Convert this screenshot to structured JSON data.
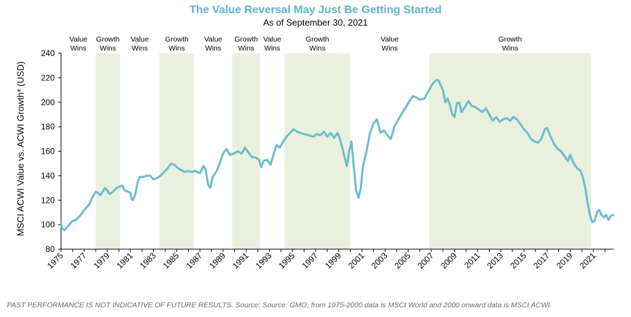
{
  "title": "The Value Reversal May Just Be Getting Started",
  "subtitle": "As of September 30, 2021",
  "footnote": "PAST PERFORMANCE IS NOT INDICATIVE OF FUTURE RESULTS. Source: Source: GMO, from 1975-2000 data is MSCI World and 2000 onward data is MSCI ACWI.",
  "colors": {
    "title": "#5fb3c8",
    "line": "#6bbccd",
    "growth_band": "#eaf0de"
  },
  "chart_data": {
    "type": "line",
    "title": "The Value Reversal May Just Be Getting Started",
    "subtitle": "As of September 30, 2021",
    "xlabel": "",
    "ylabel": "MSCI ACWI Value vs. ACWI Growth* (USD)",
    "xlim": [
      1975,
      2022.75
    ],
    "ylim": [
      80,
      240
    ],
    "yticks": [
      80,
      100,
      120,
      140,
      160,
      180,
      200,
      220,
      240
    ],
    "xticks": [
      1975,
      1977,
      1979,
      1981,
      1983,
      1985,
      1987,
      1989,
      1991,
      1993,
      1995,
      1997,
      1999,
      2001,
      2003,
      2005,
      2007,
      2009,
      2011,
      2013,
      2015,
      2017,
      2019,
      2021
    ],
    "grid": false,
    "regimes": [
      {
        "label": "Value Wins",
        "start": 1975.0,
        "end": 1978.0,
        "shaded": false
      },
      {
        "label": "Growth Wins",
        "start": 1978.0,
        "end": 1980.1,
        "shaded": true
      },
      {
        "label": "Value Wins",
        "start": 1980.1,
        "end": 1983.5,
        "shaded": false
      },
      {
        "label": "Growth Wins",
        "start": 1983.5,
        "end": 1986.5,
        "shaded": true
      },
      {
        "label": "Value Wins",
        "start": 1986.5,
        "end": 1989.8,
        "shaded": false
      },
      {
        "label": "Growth Wins",
        "start": 1989.8,
        "end": 1992.2,
        "shaded": true
      },
      {
        "label": "Value Wins",
        "start": 1992.2,
        "end": 1994.3,
        "shaded": false
      },
      {
        "label": "Growth Wins",
        "start": 1994.3,
        "end": 2000.0,
        "shaded": true
      },
      {
        "label": "Value Wins",
        "start": 2000.0,
        "end": 2006.8,
        "shaded": false
      },
      {
        "label": "Growth Wins",
        "start": 2006.8,
        "end": 2020.8,
        "shaded": true
      }
    ],
    "series": [
      {
        "values": [
          [
            1975.0,
            101
          ],
          [
            1975.1,
            97
          ],
          [
            1975.3,
            95.5
          ],
          [
            1975.6,
            99
          ],
          [
            1975.8,
            101
          ],
          [
            1976.0,
            103
          ],
          [
            1976.3,
            104
          ],
          [
            1976.7,
            108
          ],
          [
            1977.0,
            112
          ],
          [
            1977.4,
            116
          ],
          [
            1977.7,
            122
          ],
          [
            1978.0,
            127
          ],
          [
            1978.2,
            126
          ],
          [
            1978.4,
            124
          ],
          [
            1978.6,
            127
          ],
          [
            1978.8,
            130
          ],
          [
            1979.0,
            128
          ],
          [
            1979.2,
            125
          ],
          [
            1979.5,
            127
          ],
          [
            1979.8,
            130
          ],
          [
            1980.0,
            131
          ],
          [
            1980.3,
            132
          ],
          [
            1980.5,
            128
          ],
          [
            1980.8,
            127
          ],
          [
            1981.0,
            126
          ],
          [
            1981.1,
            121
          ],
          [
            1981.2,
            120
          ],
          [
            1981.4,
            124
          ],
          [
            1981.6,
            134
          ],
          [
            1981.8,
            139
          ],
          [
            1982.1,
            139
          ],
          [
            1982.4,
            140
          ],
          [
            1982.7,
            140
          ],
          [
            1983.0,
            137
          ],
          [
            1983.3,
            138
          ],
          [
            1983.6,
            140
          ],
          [
            1983.9,
            143
          ],
          [
            1984.2,
            146
          ],
          [
            1984.5,
            150
          ],
          [
            1984.8,
            149
          ],
          [
            1985.0,
            147
          ],
          [
            1985.3,
            145
          ],
          [
            1985.7,
            143
          ],
          [
            1986.0,
            144
          ],
          [
            1986.3,
            143
          ],
          [
            1986.6,
            144
          ],
          [
            1987.0,
            142
          ],
          [
            1987.3,
            148
          ],
          [
            1987.5,
            145
          ],
          [
            1987.7,
            133
          ],
          [
            1987.9,
            130
          ],
          [
            1988.1,
            139
          ],
          [
            1988.4,
            143
          ],
          [
            1988.7,
            150
          ],
          [
            1989.0,
            158
          ],
          [
            1989.3,
            162
          ],
          [
            1989.6,
            157
          ],
          [
            1989.9,
            158
          ],
          [
            1990.3,
            160
          ],
          [
            1990.6,
            158
          ],
          [
            1990.9,
            163
          ],
          [
            1991.2,
            159
          ],
          [
            1991.5,
            155
          ],
          [
            1991.8,
            155
          ],
          [
            1992.1,
            153
          ],
          [
            1992.3,
            147
          ],
          [
            1992.5,
            152
          ],
          [
            1992.8,
            153
          ],
          [
            1993.1,
            149
          ],
          [
            1993.3,
            155
          ],
          [
            1993.6,
            165
          ],
          [
            1993.9,
            163
          ],
          [
            1994.2,
            168
          ],
          [
            1994.5,
            172
          ],
          [
            1994.8,
            175
          ],
          [
            1995.1,
            178
          ],
          [
            1995.4,
            176
          ],
          [
            1995.7,
            175
          ],
          [
            1996.0,
            174
          ],
          [
            1996.4,
            173
          ],
          [
            1996.8,
            172
          ],
          [
            1997.1,
            174
          ],
          [
            1997.4,
            173
          ],
          [
            1997.7,
            176
          ],
          [
            1998.0,
            172
          ],
          [
            1998.3,
            175
          ],
          [
            1998.6,
            171
          ],
          [
            1998.9,
            175
          ],
          [
            1999.1,
            170
          ],
          [
            1999.3,
            163
          ],
          [
            1999.5,
            155
          ],
          [
            1999.7,
            148
          ],
          [
            1999.9,
            160
          ],
          [
            2000.1,
            168
          ],
          [
            2000.3,
            147
          ],
          [
            2000.5,
            128
          ],
          [
            2000.7,
            122
          ],
          [
            2000.9,
            130
          ],
          [
            2001.1,
            148
          ],
          [
            2001.4,
            160
          ],
          [
            2001.7,
            175
          ],
          [
            2002.0,
            183
          ],
          [
            2002.3,
            186
          ],
          [
            2002.6,
            175
          ],
          [
            2002.9,
            177
          ],
          [
            2003.2,
            173
          ],
          [
            2003.5,
            170
          ],
          [
            2003.8,
            180
          ],
          [
            2004.1,
            185
          ],
          [
            2004.4,
            190
          ],
          [
            2004.8,
            196
          ],
          [
            2005.1,
            201
          ],
          [
            2005.4,
            205
          ],
          [
            2005.7,
            204
          ],
          [
            2006.0,
            202
          ],
          [
            2006.4,
            203
          ],
          [
            2006.8,
            210
          ],
          [
            2007.1,
            215
          ],
          [
            2007.4,
            218
          ],
          [
            2007.6,
            218
          ],
          [
            2007.8,
            214
          ],
          [
            2008.0,
            210
          ],
          [
            2008.2,
            200
          ],
          [
            2008.4,
            203
          ],
          [
            2008.6,
            198
          ],
          [
            2008.8,
            190
          ],
          [
            2009.0,
            188
          ],
          [
            2009.2,
            199
          ],
          [
            2009.4,
            200
          ],
          [
            2009.6,
            192
          ],
          [
            2009.9,
            196
          ],
          [
            2010.2,
            201
          ],
          [
            2010.5,
            197
          ],
          [
            2010.8,
            196
          ],
          [
            2011.1,
            194
          ],
          [
            2011.4,
            192
          ],
          [
            2011.7,
            195
          ],
          [
            2012.0,
            190
          ],
          [
            2012.3,
            185
          ],
          [
            2012.6,
            188
          ],
          [
            2012.9,
            184
          ],
          [
            2013.2,
            186
          ],
          [
            2013.5,
            187
          ],
          [
            2013.8,
            185
          ],
          [
            2014.1,
            188
          ],
          [
            2014.4,
            186
          ],
          [
            2014.7,
            182
          ],
          [
            2015.0,
            178
          ],
          [
            2015.3,
            175
          ],
          [
            2015.6,
            170
          ],
          [
            2015.9,
            168
          ],
          [
            2016.2,
            167
          ],
          [
            2016.5,
            170
          ],
          [
            2016.8,
            178
          ],
          [
            2017.0,
            179
          ],
          [
            2017.3,
            172
          ],
          [
            2017.6,
            166
          ],
          [
            2017.9,
            162
          ],
          [
            2018.2,
            160
          ],
          [
            2018.5,
            156
          ],
          [
            2018.8,
            152
          ],
          [
            2019.0,
            157
          ],
          [
            2019.3,
            150
          ],
          [
            2019.6,
            146
          ],
          [
            2019.9,
            144
          ],
          [
            2020.1,
            138
          ],
          [
            2020.3,
            130
          ],
          [
            2020.5,
            118
          ],
          [
            2020.7,
            108
          ],
          [
            2020.9,
            102
          ],
          [
            2021.1,
            103
          ],
          [
            2021.3,
            110
          ],
          [
            2021.5,
            112
          ],
          [
            2021.7,
            108
          ],
          [
            2021.9,
            106
          ],
          [
            2022.1,
            108
          ],
          [
            2022.3,
            104
          ],
          [
            2022.5,
            107
          ],
          [
            2022.7,
            108
          ]
        ]
      }
    ]
  }
}
